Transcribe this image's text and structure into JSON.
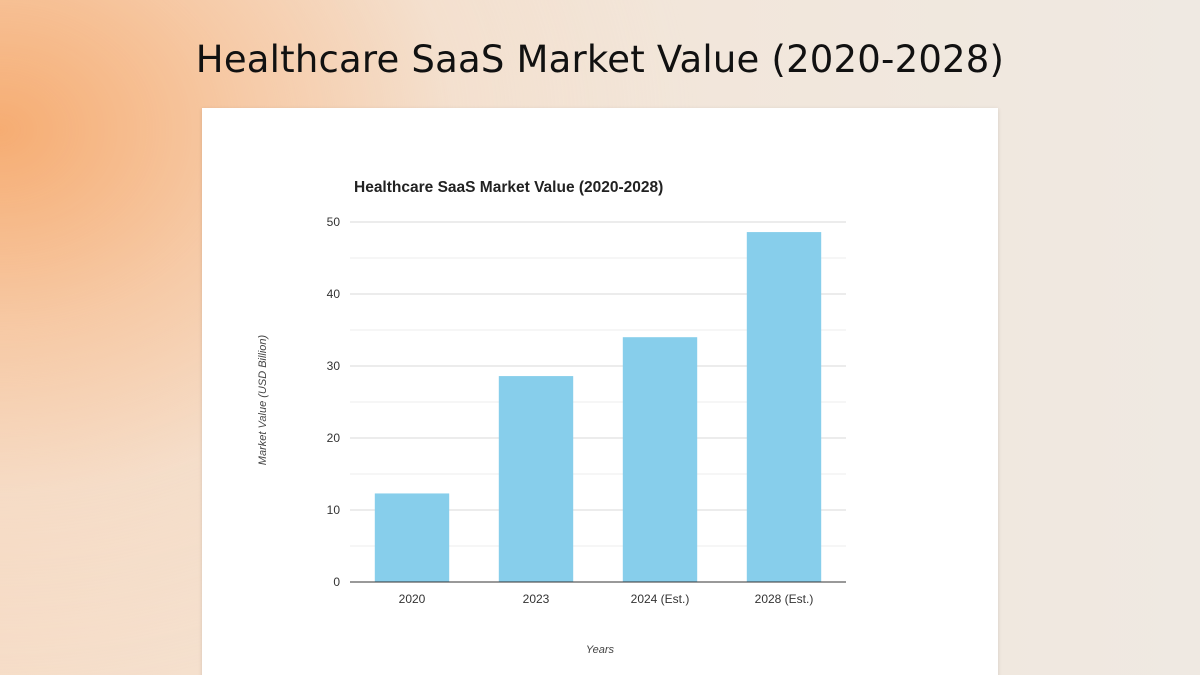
{
  "page": {
    "title": "Healthcare SaaS Market Value (2020-2028)"
  },
  "colors": {
    "bar": "#87ceeb",
    "grid": "#d9d9d9"
  },
  "chart_data": {
    "type": "bar",
    "title": "Healthcare SaaS Market Value (2020-2028)",
    "categories": [
      "2020",
      "2023",
      "2024 (Est.)",
      "2028 (Est.)"
    ],
    "values": [
      12.3,
      28.6,
      34.0,
      48.6
    ],
    "xlabel": "Years",
    "ylabel": "Market Value (USD Billion)",
    "ylim": [
      0,
      50
    ],
    "yticks": [
      0,
      10,
      20,
      30,
      40,
      50
    ],
    "grid": true,
    "legend": "none"
  }
}
